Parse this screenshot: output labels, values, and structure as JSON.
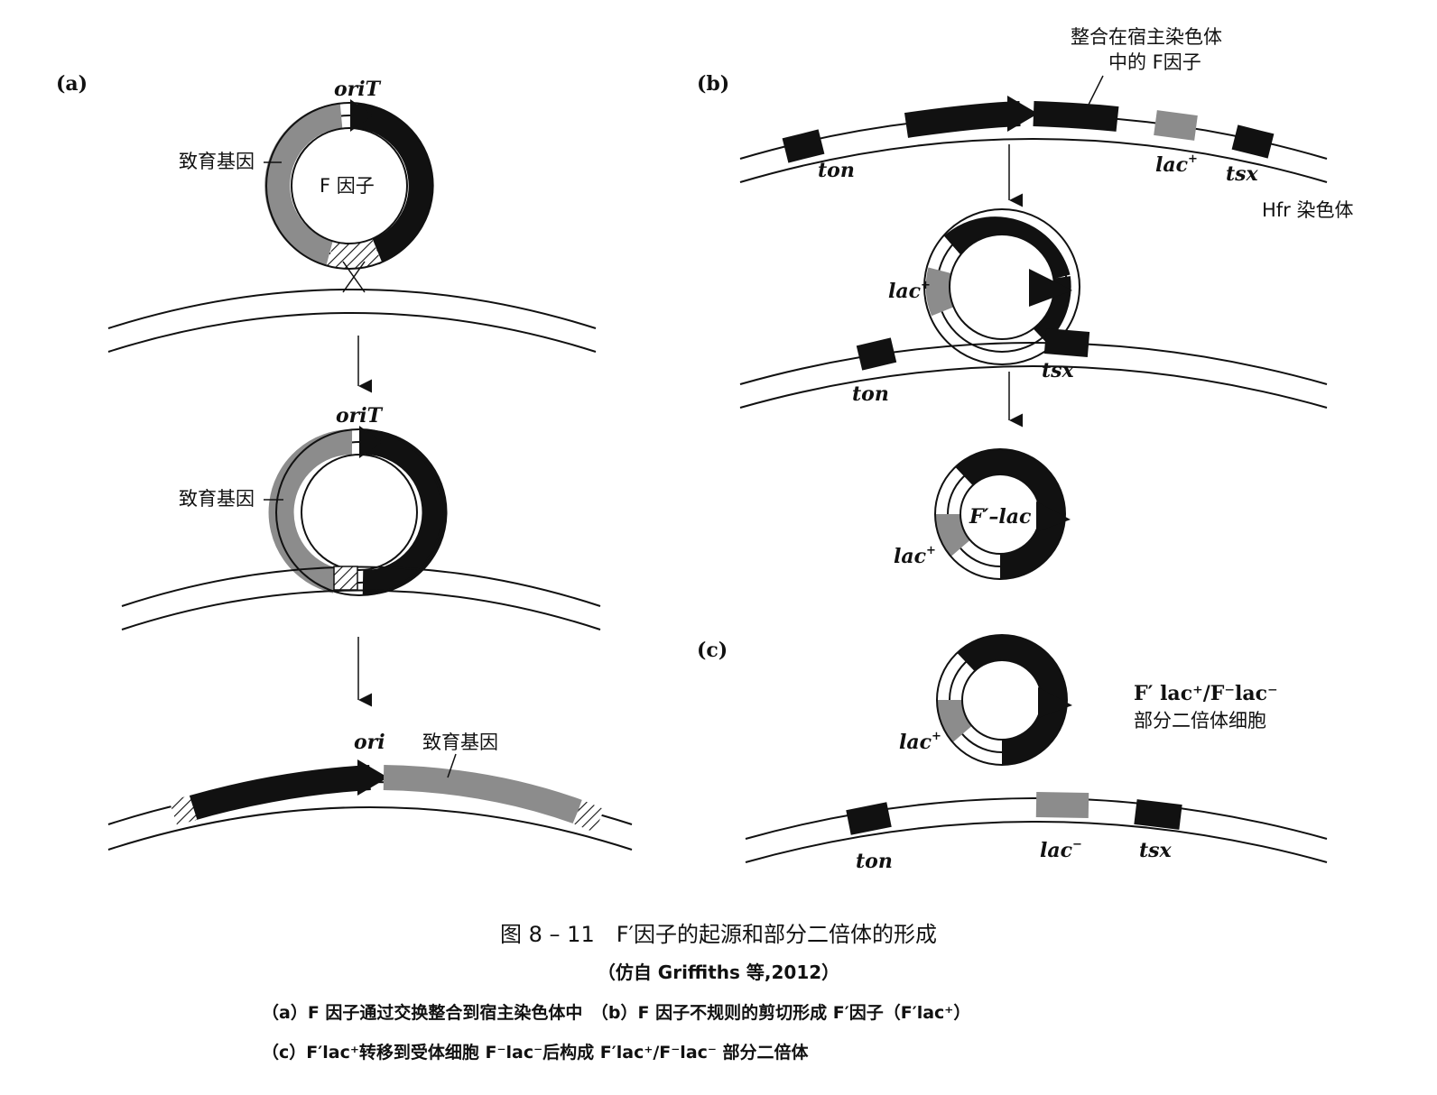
{
  "panels": {
    "a": {
      "tag": "(a)",
      "oriT_top": "oriT",
      "fertility_top": "致育基因",
      "f_factor": "F 因子",
      "oriT_middle": "oriT",
      "fertility_middle": "致育基因",
      "ori_bottom": "ori",
      "fertility_bottom": "致育基因"
    },
    "b": {
      "tag": "(b)",
      "integrated_line1": "整合在宿主染色体",
      "integrated_line2": "中的 F因子",
      "ton_top": "ton",
      "lac_top": "lac",
      "tsx_top": "tsx",
      "hfr": "Hfr 染色体",
      "lac_loop": "lac",
      "ton_loop": "ton",
      "tsx_loop": "tsx",
      "f_lac": "F′–lac",
      "lac_circle": "lac"
    },
    "c": {
      "tag": "(c)",
      "lac_circle": "lac",
      "diploid_line1": "F′ lac⁺/F⁻lac⁻",
      "diploid_line2": "部分二倍体细胞",
      "ton": "ton",
      "lac_minus": "lac",
      "tsx": "tsx"
    }
  },
  "caption": {
    "title": "图 8 – 11　F′因子的起源和部分二倍体的形成",
    "source": "（仿自 Griffiths 等,2012）",
    "line_a": "（a）F 因子通过交换整合到宿主染色体中　（b）F 因子不规则的剪切形成 F′因子（F′lac⁺）",
    "line_c": "（c）F′lac⁺转移到受体细胞 F⁻lac⁻后构成 F′lac⁺/F⁻lac⁻ 部分二倍体"
  },
  "colors": {
    "black": "#111111",
    "gray": "#8c8c8c",
    "white": "#ffffff"
  }
}
